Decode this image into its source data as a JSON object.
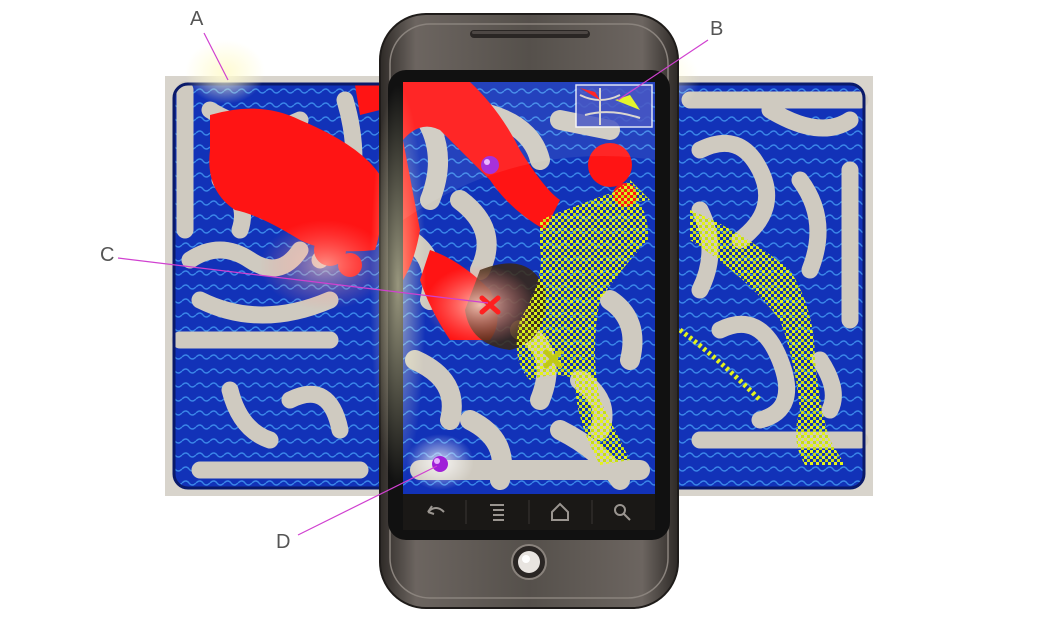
{
  "callouts": {
    "a": "A",
    "b": "B",
    "c": "C",
    "d": "D"
  },
  "colors": {
    "maze_blue": "#1232b8",
    "maze_path": "#cfcac0",
    "red_player": "#ff1414",
    "yellow_player": "#e0f020",
    "purple_marker": "#a020d8",
    "leader_line": "#d040d0",
    "phone_body": "#4a4541"
  },
  "icons": {
    "marker_red": "x-marker-icon",
    "marker_yellow": "x-marker-icon",
    "back": "back-arrow-icon",
    "menu": "menu-lines-icon",
    "home": "home-icon",
    "search": "search-icon"
  }
}
